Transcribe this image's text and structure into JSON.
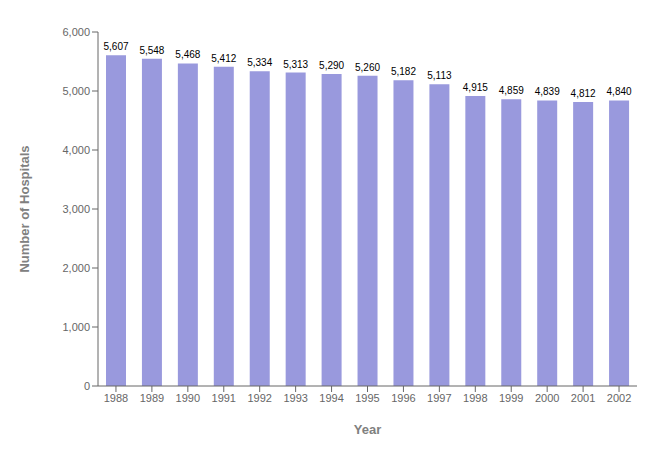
{
  "chart_data": {
    "type": "bar",
    "xlabel": "Year",
    "ylabel": "Number of Hospitals",
    "categories": [
      "1988",
      "1989",
      "1990",
      "1991",
      "1992",
      "1993",
      "1994",
      "1995",
      "1996",
      "1997",
      "1998",
      "1999",
      "2000",
      "2001",
      "2002"
    ],
    "values": [
      5607,
      5548,
      5468,
      5412,
      5334,
      5313,
      5290,
      5260,
      5182,
      5113,
      4915,
      4859,
      4839,
      4812,
      4840
    ],
    "value_labels": [
      "5,607",
      "5,548",
      "5,468",
      "5,412",
      "5,334",
      "5,313",
      "5,290",
      "5,260",
      "5,182",
      "5,113",
      "4,915",
      "4,859",
      "4,839",
      "4,812",
      "4,840"
    ],
    "color": "#9999dd",
    "ylim": [
      0,
      6000
    ],
    "yticks": [
      0,
      {
        "value": 1000,
        "label": "1,000"
      },
      {
        "value": 2000,
        "label": "2,000"
      },
      {
        "value": 3000,
        "label": "3,000"
      },
      {
        "value": 4000,
        "label": "4,000"
      },
      {
        "value": 5000,
        "label": "5,000"
      },
      {
        "value": 6000,
        "label": "6,000"
      }
    ],
    "grid": false,
    "data_labels": true
  }
}
